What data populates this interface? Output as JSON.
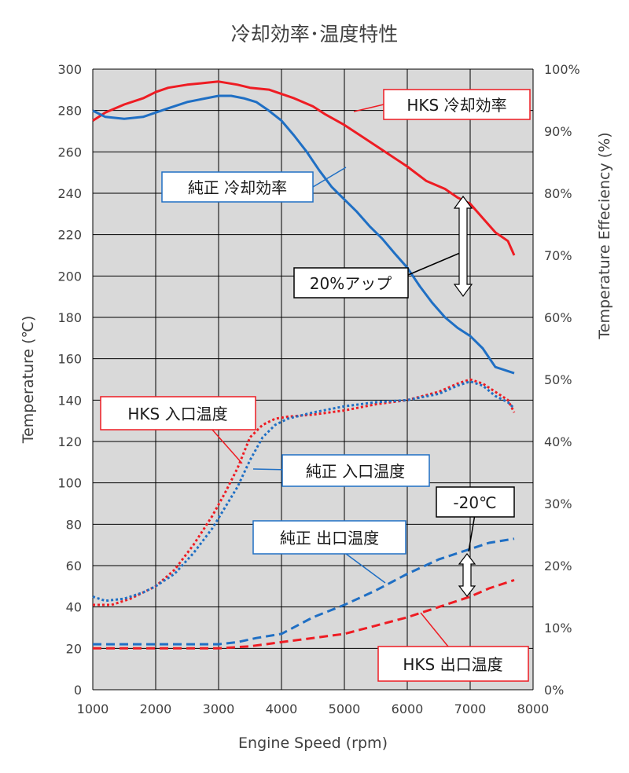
{
  "chart_data": {
    "type": "line",
    "title": "冷却効率･温度特性",
    "xlabel": "Engine Speed (rpm)",
    "ylabel": "Temperature (℃)",
    "y2label": "Temperature Effeciency (%)",
    "xlim": [
      1000,
      8000
    ],
    "ylim": [
      0,
      300
    ],
    "y2lim": [
      0,
      100
    ],
    "x_ticks": [
      "1000",
      "2000",
      "3000",
      "4000",
      "5000",
      "6000",
      "7000",
      "8000"
    ],
    "y_ticks": [
      "0",
      "20",
      "40",
      "60",
      "80",
      "100",
      "120",
      "140",
      "160",
      "180",
      "200",
      "220",
      "240",
      "260",
      "280",
      "300"
    ],
    "y2_ticks": [
      "0%",
      "10%",
      "20%",
      "30%",
      "40%",
      "50%",
      "60%",
      "70%",
      "80%",
      "90%",
      "100%"
    ],
    "grid": true,
    "colors": {
      "hks": "#ee1c23",
      "stock": "#1f6fc4",
      "plot_bg": "#d9d9d9",
      "grid": "#000000"
    },
    "series": [
      {
        "name": "HKS 冷却効率",
        "axis": "y2",
        "color": "#ee1c23",
        "style": "solid",
        "x": [
          1000,
          1200,
          1500,
          1800,
          2000,
          2200,
          2500,
          2800,
          3000,
          3300,
          3500,
          3800,
          4000,
          4200,
          4500,
          4700,
          5000,
          5300,
          5600,
          6000,
          6300,
          6600,
          6800,
          7000,
          7200,
          7400,
          7600,
          7700
        ],
        "values": [
          91.7,
          93.0,
          94.3,
          95.3,
          96.3,
          97.0,
          97.5,
          97.8,
          98.0,
          97.5,
          97.0,
          96.7,
          96.0,
          95.3,
          94.0,
          92.7,
          91.0,
          89.0,
          87.0,
          84.3,
          82.0,
          80.7,
          79.3,
          78.3,
          76.0,
          73.7,
          72.3,
          70.0
        ]
      },
      {
        "name": "純正 冷却効率",
        "axis": "y2",
        "color": "#1f6fc4",
        "style": "solid",
        "x": [
          1000,
          1200,
          1500,
          1800,
          2000,
          2200,
          2500,
          2800,
          3000,
          3200,
          3400,
          3600,
          3800,
          4000,
          4200,
          4400,
          4600,
          4800,
          5000,
          5200,
          5400,
          5600,
          5800,
          6000,
          6200,
          6400,
          6600,
          6800,
          7000,
          7200,
          7400,
          7700
        ],
        "values": [
          93.3,
          92.3,
          92.0,
          92.3,
          93.0,
          93.7,
          94.7,
          95.3,
          95.7,
          95.7,
          95.3,
          94.7,
          93.3,
          91.7,
          89.3,
          86.7,
          83.7,
          81.0,
          79.0,
          77.0,
          74.7,
          72.7,
          70.3,
          68.0,
          65.0,
          62.3,
          60.0,
          58.3,
          57.0,
          55.0,
          52.0,
          51.0
        ]
      },
      {
        "name": "HKS 入口温度",
        "axis": "y",
        "color": "#ee1c23",
        "style": "dotted",
        "x": [
          1000,
          1300,
          1600,
          2000,
          2300,
          2600,
          2900,
          3100,
          3300,
          3500,
          3700,
          3900,
          4100,
          4500,
          5000,
          5500,
          6000,
          6500,
          6800,
          7000,
          7200,
          7400,
          7600,
          7700
        ],
        "values": [
          41,
          41,
          44,
          50,
          58,
          70,
          84,
          95,
          107,
          122,
          128,
          131,
          132,
          133,
          135,
          138,
          140,
          144,
          148,
          150,
          148,
          144,
          140,
          134
        ]
      },
      {
        "name": "純正 入口温度",
        "axis": "y",
        "color": "#1f6fc4",
        "style": "dotted",
        "x": [
          1000,
          1200,
          1500,
          1800,
          2000,
          2300,
          2600,
          2900,
          3100,
          3300,
          3500,
          3700,
          3900,
          4100,
          4500,
          5000,
          5500,
          6000,
          6500,
          6800,
          7000,
          7200,
          7400,
          7600,
          7700
        ],
        "values": [
          45,
          43,
          44,
          47,
          50,
          56,
          66,
          78,
          88,
          98,
          111,
          122,
          128,
          131,
          134,
          137,
          139,
          140,
          143,
          147,
          149,
          147,
          142,
          139,
          136
        ]
      },
      {
        "name": "純正 出口温度",
        "axis": "y",
        "color": "#1f6fc4",
        "style": "dashed",
        "x": [
          1000,
          1500,
          2000,
          2500,
          3000,
          3300,
          3600,
          4000,
          4500,
          5000,
          5500,
          6000,
          6500,
          7000,
          7300,
          7700
        ],
        "values": [
          22,
          22,
          22,
          22,
          22,
          23,
          25,
          27,
          35,
          41,
          48,
          56,
          63,
          68,
          71,
          73
        ]
      },
      {
        "name": "HKS 出口温度",
        "axis": "y",
        "color": "#ee1c23",
        "style": "dashed",
        "x": [
          1000,
          1500,
          2000,
          2500,
          3000,
          3500,
          4000,
          4500,
          5000,
          5500,
          6000,
          6500,
          7000,
          7300,
          7700
        ],
        "values": [
          20,
          20,
          20,
          20,
          20,
          21,
          23,
          25,
          27,
          31,
          35,
          40,
          45,
          49,
          53
        ]
      }
    ],
    "annotations": {
      "hks_eff": "HKS 冷却効率",
      "stock_eff": "純正 冷却効率",
      "gain": "20%アップ",
      "hks_in": "HKS 入口温度",
      "stock_in": "純正 入口温度",
      "stock_out": "純正 出口温度",
      "drop": "-20℃",
      "hks_out": "HKS 出口温度"
    }
  }
}
